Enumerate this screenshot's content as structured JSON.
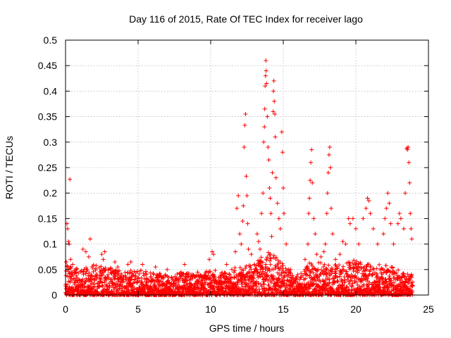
{
  "chart_data": {
    "type": "scatter",
    "title": "Day 116 of 2015, Rate Of TEC Index for receiver lago",
    "xlabel": "GPS time / hours",
    "ylabel": "ROTI / TECUs",
    "xlim": [
      0,
      25
    ],
    "ylim": [
      0,
      0.5
    ],
    "x_ticks": [
      "0",
      "5",
      "10",
      "15",
      "20",
      "25"
    ],
    "y_ticks": [
      "0",
      "0.05",
      "0.1",
      "0.15",
      "0.2",
      "0.25",
      "0.3",
      "0.35",
      "0.4",
      "0.45",
      "0.5"
    ],
    "grid": true,
    "marker": "+",
    "color": "#ff0000",
    "points": [
      [
        0.05,
        0.065
      ],
      [
        0.1,
        0.14
      ],
      [
        0.15,
        0.13
      ],
      [
        0.2,
        0.105
      ],
      [
        0.25,
        0.1
      ],
      [
        0.3,
        0.227
      ],
      [
        0.35,
        0.07
      ],
      [
        0.5,
        0.06
      ],
      [
        1.2,
        0.09
      ],
      [
        1.4,
        0.085
      ],
      [
        1.6,
        0.075
      ],
      [
        1.7,
        0.11
      ],
      [
        2.5,
        0.08
      ],
      [
        2.6,
        0.07
      ],
      [
        2.7,
        0.085
      ],
      [
        3.4,
        0.065
      ],
      [
        3.6,
        0.055
      ],
      [
        4.3,
        0.06
      ],
      [
        4.5,
        0.065
      ],
      [
        5.3,
        0.06
      ],
      [
        6.2,
        0.055
      ],
      [
        7.0,
        0.05
      ],
      [
        8.2,
        0.06
      ],
      [
        9.1,
        0.045
      ],
      [
        9.9,
        0.07
      ],
      [
        10.1,
        0.085
      ],
      [
        10.2,
        0.08
      ],
      [
        11.1,
        0.06
      ],
      [
        11.7,
        0.085
      ],
      [
        11.8,
        0.17
      ],
      [
        11.9,
        0.195
      ],
      [
        12.0,
        0.12
      ],
      [
        12.1,
        0.1
      ],
      [
        12.2,
        0.145
      ],
      [
        12.25,
        0.175
      ],
      [
        12.3,
        0.29
      ],
      [
        12.35,
        0.333
      ],
      [
        12.4,
        0.355
      ],
      [
        12.45,
        0.233
      ],
      [
        12.5,
        0.195
      ],
      [
        12.55,
        0.14
      ],
      [
        12.6,
        0.09
      ],
      [
        12.8,
        0.08
      ],
      [
        13.0,
        0.06
      ],
      [
        13.2,
        0.12
      ],
      [
        13.3,
        0.105
      ],
      [
        13.4,
        0.09
      ],
      [
        13.5,
        0.16
      ],
      [
        13.6,
        0.2
      ],
      [
        13.65,
        0.3
      ],
      [
        13.7,
        0.33
      ],
      [
        13.72,
        0.365
      ],
      [
        13.75,
        0.41
      ],
      [
        13.78,
        0.43
      ],
      [
        13.8,
        0.46
      ],
      [
        13.82,
        0.44
      ],
      [
        13.85,
        0.415
      ],
      [
        13.9,
        0.35
      ],
      [
        13.95,
        0.29
      ],
      [
        14.0,
        0.265
      ],
      [
        14.05,
        0.21
      ],
      [
        14.1,
        0.19
      ],
      [
        14.15,
        0.16
      ],
      [
        14.2,
        0.115
      ],
      [
        14.25,
        0.24
      ],
      [
        14.3,
        0.36
      ],
      [
        14.32,
        0.4
      ],
      [
        14.35,
        0.42
      ],
      [
        14.38,
        0.38
      ],
      [
        14.42,
        0.355
      ],
      [
        14.45,
        0.31
      ],
      [
        14.5,
        0.23
      ],
      [
        14.6,
        0.18
      ],
      [
        14.7,
        0.15
      ],
      [
        14.8,
        0.13
      ],
      [
        14.9,
        0.32
      ],
      [
        14.95,
        0.28
      ],
      [
        15.0,
        0.21
      ],
      [
        15.05,
        0.16
      ],
      [
        15.2,
        0.1
      ],
      [
        15.5,
        0.05
      ],
      [
        16.0,
        0.04
      ],
      [
        16.5,
        0.07
      ],
      [
        16.7,
        0.1
      ],
      [
        16.75,
        0.16
      ],
      [
        16.8,
        0.19
      ],
      [
        16.85,
        0.225
      ],
      [
        16.9,
        0.26
      ],
      [
        16.95,
        0.285
      ],
      [
        17.0,
        0.22
      ],
      [
        17.1,
        0.15
      ],
      [
        17.2,
        0.12
      ],
      [
        17.3,
        0.08
      ],
      [
        17.6,
        0.075
      ],
      [
        17.8,
        0.085
      ],
      [
        17.9,
        0.1
      ],
      [
        18.0,
        0.16
      ],
      [
        18.05,
        0.2
      ],
      [
        18.1,
        0.24
      ],
      [
        18.15,
        0.275
      ],
      [
        18.2,
        0.29
      ],
      [
        18.25,
        0.25
      ],
      [
        18.3,
        0.17
      ],
      [
        18.4,
        0.12
      ],
      [
        18.6,
        0.07
      ],
      [
        18.9,
        0.08
      ],
      [
        19.1,
        0.105
      ],
      [
        19.3,
        0.1
      ],
      [
        19.5,
        0.15
      ],
      [
        19.6,
        0.14
      ],
      [
        19.8,
        0.15
      ],
      [
        20.0,
        0.13
      ],
      [
        20.2,
        0.1
      ],
      [
        20.5,
        0.15
      ],
      [
        20.7,
        0.17
      ],
      [
        20.8,
        0.19
      ],
      [
        20.9,
        0.185
      ],
      [
        21.0,
        0.16
      ],
      [
        21.2,
        0.13
      ],
      [
        21.5,
        0.1
      ],
      [
        21.9,
        0.12
      ],
      [
        22.0,
        0.15
      ],
      [
        22.1,
        0.17
      ],
      [
        22.2,
        0.2
      ],
      [
        22.3,
        0.18
      ],
      [
        22.4,
        0.14
      ],
      [
        22.6,
        0.1
      ],
      [
        22.9,
        0.14
      ],
      [
        23.0,
        0.16
      ],
      [
        23.1,
        0.15
      ],
      [
        23.3,
        0.13
      ],
      [
        23.4,
        0.2
      ],
      [
        23.5,
        0.288
      ],
      [
        23.55,
        0.285
      ],
      [
        23.6,
        0.29
      ],
      [
        23.65,
        0.26
      ],
      [
        23.7,
        0.22
      ],
      [
        23.75,
        0.16
      ],
      [
        23.8,
        0.13
      ],
      [
        23.85,
        0.11
      ]
    ],
    "noise_envelope": [
      [
        0,
        0.06
      ],
      [
        1,
        0.05
      ],
      [
        2,
        0.06
      ],
      [
        3,
        0.055
      ],
      [
        4,
        0.05
      ],
      [
        5,
        0.05
      ],
      [
        6,
        0.045
      ],
      [
        7,
        0.04
      ],
      [
        8,
        0.045
      ],
      [
        9,
        0.04
      ],
      [
        10,
        0.05
      ],
      [
        11,
        0.045
      ],
      [
        12,
        0.06
      ],
      [
        13,
        0.06
      ],
      [
        14,
        0.09
      ],
      [
        15,
        0.06
      ],
      [
        16,
        0.035
      ],
      [
        17,
        0.07
      ],
      [
        18,
        0.06
      ],
      [
        19,
        0.06
      ],
      [
        20,
        0.07
      ],
      [
        21,
        0.06
      ],
      [
        22,
        0.06
      ],
      [
        23,
        0.05
      ],
      [
        23.9,
        0.04
      ]
    ]
  }
}
